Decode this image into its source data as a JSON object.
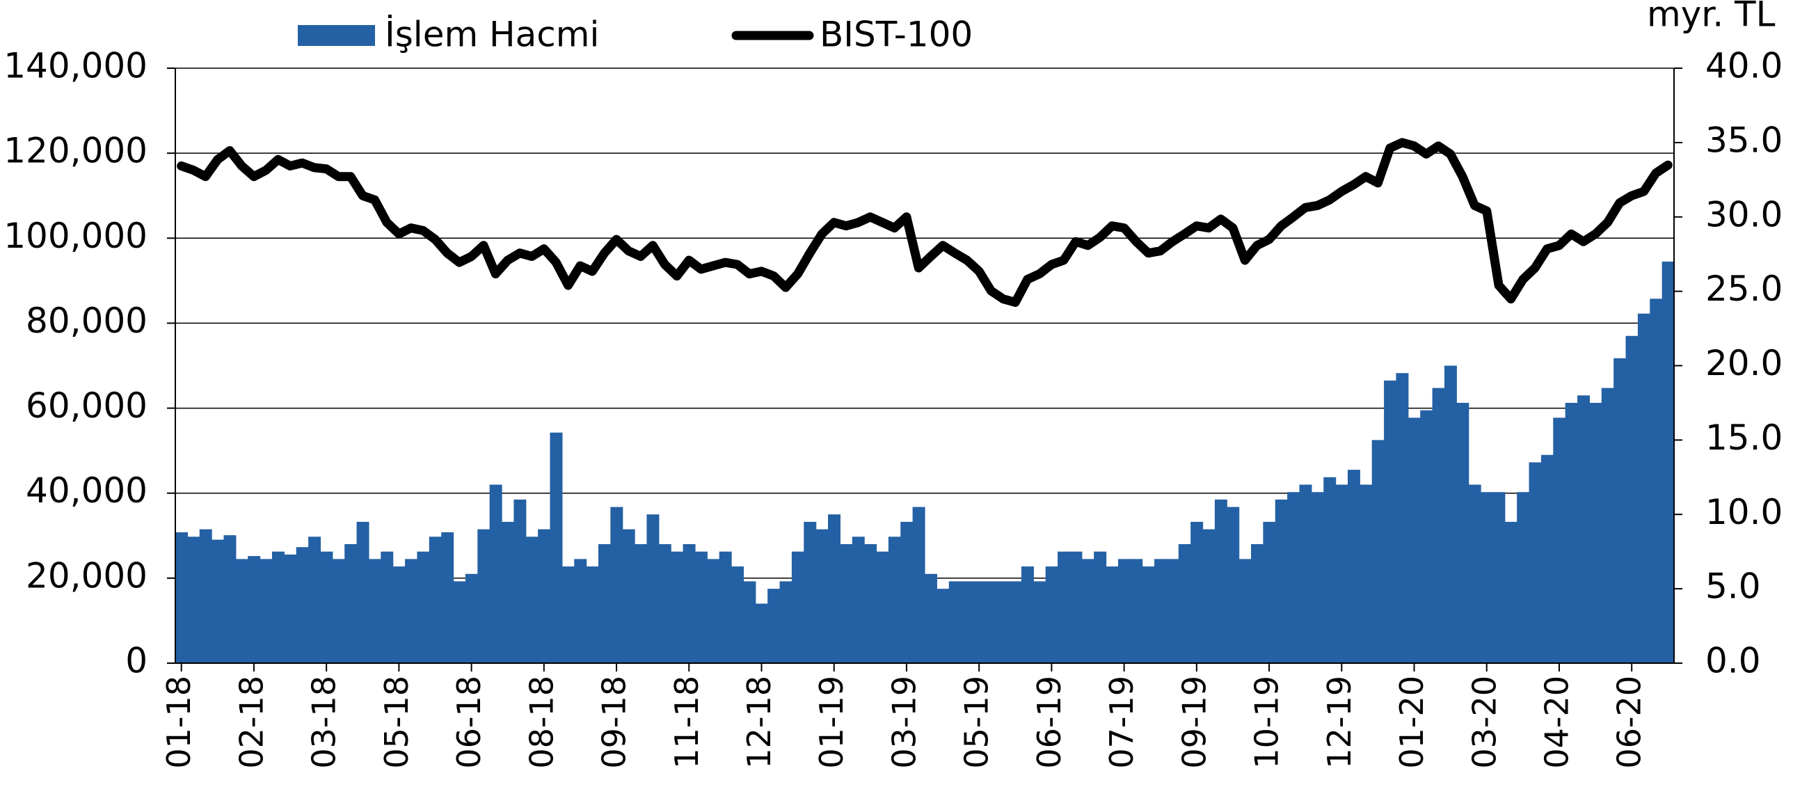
{
  "chart_data": {
    "type": "bar",
    "y2label": "myr. TL",
    "categories": [
      "01-18",
      null,
      null,
      null,
      null,
      null,
      "02-18",
      null,
      null,
      null,
      null,
      null,
      "03-18",
      null,
      null,
      null,
      null,
      null,
      "05-18",
      null,
      null,
      null,
      null,
      null,
      "06-18",
      null,
      null,
      null,
      null,
      null,
      "08-18",
      null,
      null,
      null,
      null,
      null,
      "09-18",
      null,
      null,
      null,
      null,
      null,
      "11-18",
      null,
      null,
      null,
      null,
      null,
      "12-18",
      null,
      null,
      null,
      null,
      null,
      "01-19",
      null,
      null,
      null,
      null,
      null,
      "03-19",
      null,
      null,
      null,
      null,
      null,
      "05-19",
      null,
      null,
      null,
      null,
      null,
      "06-19",
      null,
      null,
      null,
      null,
      null,
      "07-19",
      null,
      null,
      null,
      null,
      null,
      "09-19",
      null,
      null,
      null,
      null,
      null,
      "10-19",
      null,
      null,
      null,
      null,
      null,
      "12-19",
      null,
      null,
      null,
      null,
      null,
      "01-20",
      null,
      null,
      null,
      null,
      null,
      "03-20",
      null,
      null,
      null,
      null,
      null,
      "04-20",
      null,
      null,
      null,
      null,
      null,
      "06-20",
      null,
      null,
      null
    ],
    "series": [
      {
        "name": "İşlem Hacmi",
        "type": "bar",
        "axis": "y2",
        "color": "#2460a4",
        "values": [
          8.8,
          8.5,
          9.0,
          8.3,
          8.6,
          7.0,
          7.2,
          7.0,
          7.5,
          7.3,
          7.8,
          8.5,
          7.5,
          7.0,
          8.0,
          9.5,
          7.0,
          7.5,
          6.5,
          7.0,
          7.5,
          8.5,
          8.8,
          5.5,
          6.0,
          9.0,
          12.0,
          9.5,
          11.0,
          8.5,
          9.0,
          15.5,
          6.5,
          7.0,
          6.5,
          8.0,
          10.5,
          9.0,
          8.0,
          10.0,
          8.0,
          7.5,
          8.0,
          7.5,
          7.0,
          7.5,
          6.5,
          5.5,
          4.0,
          5.0,
          5.5,
          7.5,
          9.5,
          9.0,
          10.0,
          8.0,
          8.5,
          8.0,
          7.5,
          8.5,
          9.5,
          10.5,
          6.0,
          5.0,
          5.5,
          5.5,
          5.5,
          5.5,
          5.5,
          5.5,
          6.5,
          5.5,
          6.5,
          7.5,
          7.5,
          7.0,
          7.5,
          6.5,
          7.0,
          7.0,
          6.5,
          7.0,
          7.0,
          8.0,
          9.5,
          9.0,
          11.0,
          10.5,
          7.0,
          8.0,
          9.5,
          11.0,
          11.5,
          12.0,
          11.5,
          12.5,
          12.0,
          13.0,
          12.0,
          15.0,
          19.0,
          19.5,
          16.5,
          17.0,
          18.5,
          20.0,
          17.5,
          12.0,
          11.5,
          11.5,
          9.5,
          11.5,
          13.5,
          14.0,
          16.5,
          17.5,
          18.0,
          17.5,
          18.5,
          20.5,
          22.0,
          23.5,
          24.5,
          27.0
        ]
      },
      {
        "name": "BIST-100",
        "type": "line",
        "color": "#000000",
        "values": [
          117000,
          116000,
          114500,
          118500,
          120600,
          117000,
          114500,
          116000,
          118500,
          117000,
          117700,
          116600,
          116300,
          114500,
          114500,
          110000,
          109000,
          103700,
          101000,
          102400,
          101800,
          99700,
          96500,
          94300,
          95700,
          98300,
          91600,
          94800,
          96500,
          95700,
          97500,
          94300,
          88900,
          93500,
          92200,
          96500,
          99700,
          97000,
          95700,
          98300,
          93800,
          91100,
          94800,
          92700,
          93500,
          94300,
          93800,
          91600,
          92200,
          91100,
          88400,
          91600,
          96500,
          101000,
          103700,
          102900,
          103700,
          105000,
          103700,
          102400,
          105000,
          93000,
          95700,
          98300,
          96500,
          94800,
          92200,
          87600,
          85700,
          84900,
          90300,
          91600,
          93800,
          94800,
          99200,
          98300,
          100200,
          102900,
          102400,
          99200,
          96500,
          97000,
          99200,
          101000,
          102900,
          102400,
          104500,
          102400,
          94800,
          98300,
          99700,
          102900,
          105000,
          107200,
          107700,
          109000,
          111000,
          112600,
          114500,
          113000,
          121200,
          122500,
          121700,
          119800,
          121700,
          119800,
          114500,
          107700,
          106400,
          88900,
          85700,
          90300,
          93000,
          97500,
          98300,
          101000,
          99200,
          101000,
          103700,
          108300,
          110000,
          111000,
          115300,
          117200
        ]
      }
    ],
    "ylim": [
      0,
      140000
    ],
    "yticks": [
      0,
      {
        "value": 20000,
        "label": "20,000"
      },
      {
        "value": 40000,
        "label": "40,000"
      },
      {
        "value": 60000,
        "label": "60,000"
      },
      {
        "value": 80000,
        "label": "80,000"
      },
      {
        "value": 100000,
        "label": "100,000"
      },
      {
        "value": 120000,
        "label": "120,000"
      },
      {
        "value": 140000,
        "label": "140,000"
      }
    ],
    "y2lim": [
      0,
      40
    ],
    "y2ticks": [
      {
        "value": 0,
        "label": "0.0"
      },
      {
        "value": 5,
        "label": "5.0"
      },
      {
        "value": 10,
        "label": "10.0"
      },
      {
        "value": 15,
        "label": "15.0"
      },
      {
        "value": 20,
        "label": "20.0"
      },
      {
        "value": 25,
        "label": "25.0"
      },
      {
        "value": 30,
        "label": "30.0"
      },
      {
        "value": 35,
        "label": "35.0"
      },
      {
        "value": 40,
        "label": "40.0"
      }
    ],
    "grid": true,
    "legend": "top"
  }
}
